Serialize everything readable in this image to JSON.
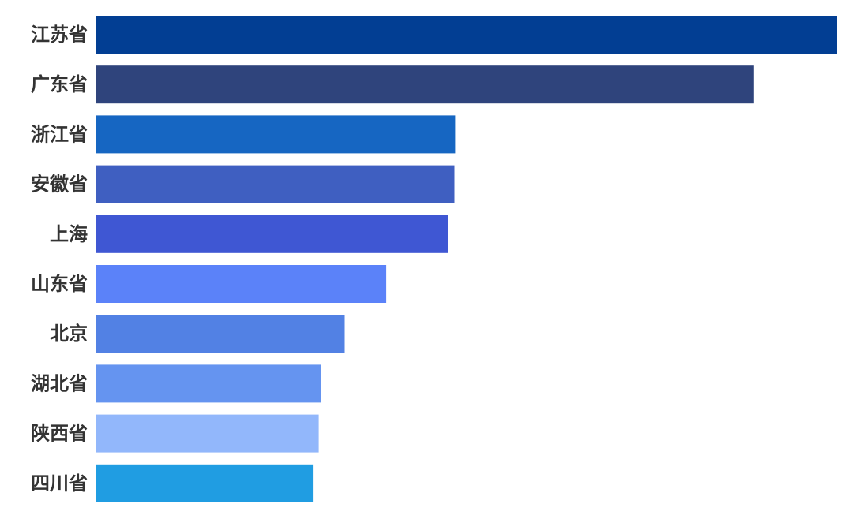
{
  "chart_data": {
    "type": "bar",
    "orientation": "horizontal",
    "title": "",
    "xlabel": "",
    "ylabel": "",
    "categories": [
      "江苏省",
      "广东省",
      "浙江省",
      "安徽省",
      "上海",
      "山东省",
      "北京",
      "湖北省",
      "陕西省",
      "四川省"
    ],
    "values": [
      100,
      88.8,
      48.5,
      48.4,
      47.5,
      39.2,
      33.6,
      30.4,
      30.1,
      29.3
    ],
    "value_unit": "relative bar length (longest = 100)",
    "xlim": [
      0,
      100
    ],
    "grid": false,
    "legend": "none",
    "colors": [
      "#023e93",
      "#2f447c",
      "#1666c2",
      "#3f5fc1",
      "#3f57d3",
      "#5b82f9",
      "#5281e4",
      "#6594f0",
      "#92b7fb",
      "#209de2"
    ]
  }
}
